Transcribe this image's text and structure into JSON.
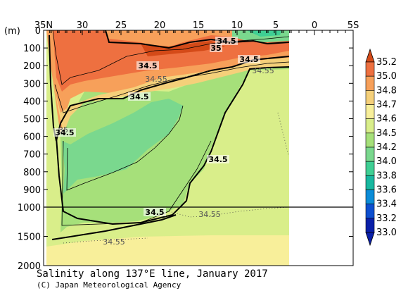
{
  "chart_data": {
    "type": "heatmap",
    "title": "Salinity along 137°E line, January 2017",
    "credit": "(C) Japan Meteorological Agency",
    "ylabel": "(m)",
    "x_ticks": [
      "35N",
      "30",
      "25",
      "20",
      "15",
      "10",
      "5",
      "0",
      "5S"
    ],
    "x_tick_values": [
      35,
      30,
      25,
      20,
      15,
      10,
      5,
      0,
      -5
    ],
    "xlim": [
      35,
      -5
    ],
    "y_ticks_upper": [
      "0",
      "100",
      "200",
      "300",
      "400",
      "500",
      "600",
      "700",
      "800",
      "900",
      "1000"
    ],
    "y_ticks_lower": [
      "1500",
      "2000"
    ],
    "y_upper_range": [
      0,
      1000
    ],
    "y_lower_range": [
      1000,
      2000
    ],
    "data_extent_lat": [
      34.2,
      3.2
    ],
    "colorbar": {
      "levels": [
        "35.2",
        "35.0",
        "34.8",
        "34.7",
        "34.6",
        "34.5",
        "34.2",
        "34.0",
        "33.8",
        "33.6",
        "33.4",
        "33.2",
        "33.0"
      ],
      "colors": [
        "#d44a18",
        "#ee7040",
        "#f7a05a",
        "#f5d07a",
        "#f8ef9a",
        "#d9ee8a",
        "#a6e07a",
        "#7ad88e",
        "#3fcf94",
        "#18b8a0",
        "#0b8cd8",
        "#0d4fd0",
        "#0a1fa8"
      ]
    },
    "contour_labels": [
      "34.5",
      "35",
      "34.5",
      "34.55",
      "34.5",
      "34.5",
      "34.5",
      "35",
      "34.5",
      "34.55",
      "34.5",
      "34.55",
      "34.55"
    ],
    "series": [
      {
        "name": "34.5 upper boundary",
        "points": [
          [
            33.2,
            50
          ],
          [
            32.8,
            180
          ],
          [
            32.5,
            300
          ],
          [
            31.5,
            380
          ],
          [
            28,
            340
          ],
          [
            24,
            230
          ],
          [
            21,
            150
          ],
          [
            16,
            120
          ],
          [
            10,
            110
          ],
          [
            5,
            85
          ],
          [
            3.2,
            80
          ]
        ]
      },
      {
        "name": "34.5 deep boundary",
        "points": [
          [
            32.5,
            300
          ],
          [
            31.5,
            540
          ],
          [
            31.8,
            640
          ],
          [
            30.5,
            800
          ],
          [
            29,
            920
          ],
          [
            22,
            960
          ],
          [
            15,
            880
          ],
          [
            13,
            780
          ],
          [
            11,
            470
          ],
          [
            9.5,
            260
          ],
          [
            6,
            230
          ],
          [
            3.2,
            220
          ]
        ]
      }
    ]
  }
}
